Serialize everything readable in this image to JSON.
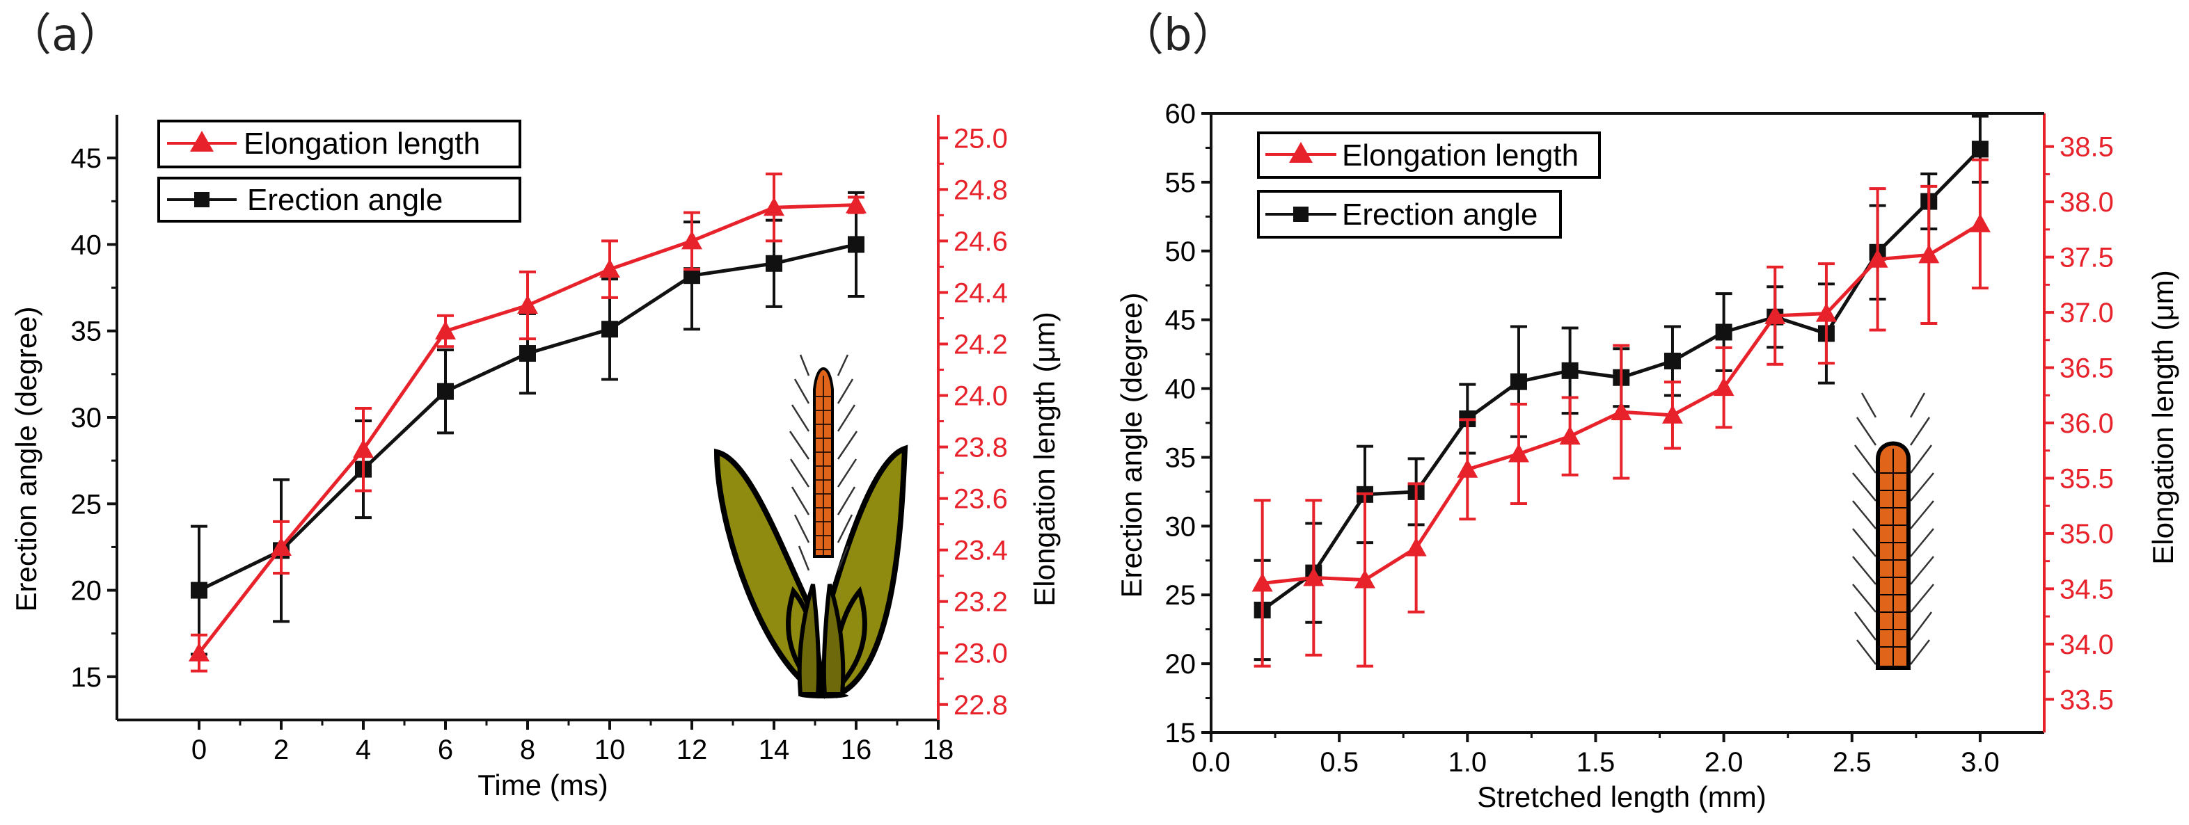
{
  "colors": {
    "black_series": "#111111",
    "red_series": "#e8222b",
    "axis": "#111111"
  },
  "chart_data": [
    {
      "panel_label": "（a）",
      "type": "line",
      "x_label": "Time (ms)",
      "y_left_label": "Erection angle (degree)",
      "y_right_label": "Elongation length (μm)",
      "xlim": [
        -2,
        18
      ],
      "ylim_left": [
        12.5,
        47.5
      ],
      "ylim_right": [
        22.74,
        25.09
      ],
      "x_ticks": [
        0,
        2,
        4,
        6,
        8,
        10,
        12,
        14,
        16,
        18
      ],
      "x_tick_labels": [
        "0",
        "2",
        "4",
        "6",
        "8",
        "10",
        "12",
        "14",
        "16",
        "18"
      ],
      "y_left_ticks": [
        15,
        20,
        25,
        30,
        35,
        40,
        45
      ],
      "y_left_tick_labels": [
        "15",
        "20",
        "25",
        "30",
        "35",
        "40",
        "45"
      ],
      "y_right_ticks": [
        22.8,
        23.0,
        23.2,
        23.4,
        23.6,
        23.8,
        24.0,
        24.2,
        24.4,
        24.6,
        24.8,
        25.0
      ],
      "y_right_tick_labels": [
        "22.8",
        "23.0",
        "23.2",
        "23.4",
        "23.6",
        "23.8",
        "24.0",
        "24.2",
        "24.4",
        "24.6",
        "24.8",
        "25.0"
      ],
      "legend": [
        "Elongation length",
        "Erection angle"
      ],
      "inset": "plant-inset",
      "series": [
        {
          "name": "Erection angle",
          "axis": "left",
          "marker": "square",
          "color": "#111111",
          "x": [
            0,
            2,
            4,
            6,
            8,
            10,
            12,
            14,
            16
          ],
          "y": [
            20.0,
            22.3,
            27.0,
            31.5,
            33.7,
            35.1,
            38.2,
            38.9,
            40.0
          ],
          "err": [
            3.7,
            4.1,
            2.8,
            2.4,
            2.3,
            2.9,
            3.1,
            2.5,
            3.0
          ]
        },
        {
          "name": "Elongation length",
          "axis": "right",
          "marker": "triangle",
          "color": "#e8222b",
          "x": [
            0,
            2,
            4,
            6,
            8,
            10,
            12,
            14,
            16
          ],
          "y": [
            23.0,
            23.41,
            23.79,
            24.25,
            24.35,
            24.49,
            24.6,
            24.73,
            24.74
          ],
          "err": [
            0.07,
            0.1,
            0.16,
            0.06,
            0.13,
            0.11,
            0.11,
            0.13,
            0.03
          ]
        }
      ]
    },
    {
      "panel_label": "（b）",
      "type": "line",
      "x_label": "Stretched length (mm)",
      "y_left_label": "Erection  angle (degree)",
      "y_right_label": "Elongation length (μm)",
      "xlim": [
        0.0,
        3.25
      ],
      "ylim_left": [
        15,
        60
      ],
      "ylim_right": [
        33.2,
        38.8
      ],
      "x_ticks": [
        0.0,
        0.5,
        1.0,
        1.5,
        2.0,
        2.5,
        3.0
      ],
      "x_tick_labels": [
        "0.0",
        "0.5",
        "1.0",
        "1.5",
        "2.0",
        "2.5",
        "3.0"
      ],
      "y_left_ticks": [
        15,
        20,
        25,
        30,
        35,
        40,
        45,
        50,
        55,
        60
      ],
      "y_left_tick_labels": [
        "15",
        "20",
        "25",
        "30",
        "35",
        "40",
        "45",
        "50",
        "55",
        "60"
      ],
      "y_right_ticks": [
        33.5,
        34.0,
        34.5,
        35.0,
        35.5,
        36.0,
        36.5,
        37.0,
        37.5,
        38.0,
        38.5
      ],
      "y_right_tick_labels": [
        "33.5",
        "34.0",
        "34.5",
        "35.0",
        "35.5",
        "36.0",
        "36.5",
        "37.0",
        "37.5",
        "38.0",
        "38.5"
      ],
      "legend": [
        "Elongation length",
        "Erection angle"
      ],
      "inset": "stem-inset",
      "series": [
        {
          "name": "Erection angle",
          "axis": "left",
          "marker": "square",
          "color": "#111111",
          "x": [
            0.2,
            0.4,
            0.6,
            0.8,
            1.0,
            1.2,
            1.4,
            1.6,
            1.8,
            2.0,
            2.2,
            2.4,
            2.6,
            2.8,
            3.0
          ],
          "y": [
            23.9,
            26.6,
            32.3,
            32.5,
            37.8,
            40.5,
            41.3,
            40.8,
            42.0,
            44.1,
            45.2,
            44.0,
            49.9,
            53.6,
            57.4
          ],
          "err": [
            3.6,
            3.6,
            3.5,
            2.4,
            2.5,
            4.0,
            3.1,
            2.1,
            2.5,
            2.8,
            2.2,
            3.6,
            3.4,
            2.0,
            2.4
          ]
        },
        {
          "name": "Elongation length",
          "axis": "right",
          "marker": "triangle",
          "color": "#e8222b",
          "x": [
            0.2,
            0.4,
            0.6,
            0.8,
            1.0,
            1.2,
            1.4,
            1.6,
            1.8,
            2.0,
            2.2,
            2.4,
            2.6,
            2.8,
            3.0
          ],
          "y": [
            34.55,
            34.6,
            34.58,
            34.87,
            35.58,
            35.72,
            35.88,
            36.1,
            36.07,
            36.32,
            36.97,
            36.99,
            37.48,
            37.52,
            37.8
          ],
          "err": [
            0.75,
            0.7,
            0.78,
            0.58,
            0.45,
            0.45,
            0.35,
            0.6,
            0.3,
            0.36,
            0.44,
            0.45,
            0.64,
            0.62,
            0.58
          ]
        }
      ]
    }
  ]
}
